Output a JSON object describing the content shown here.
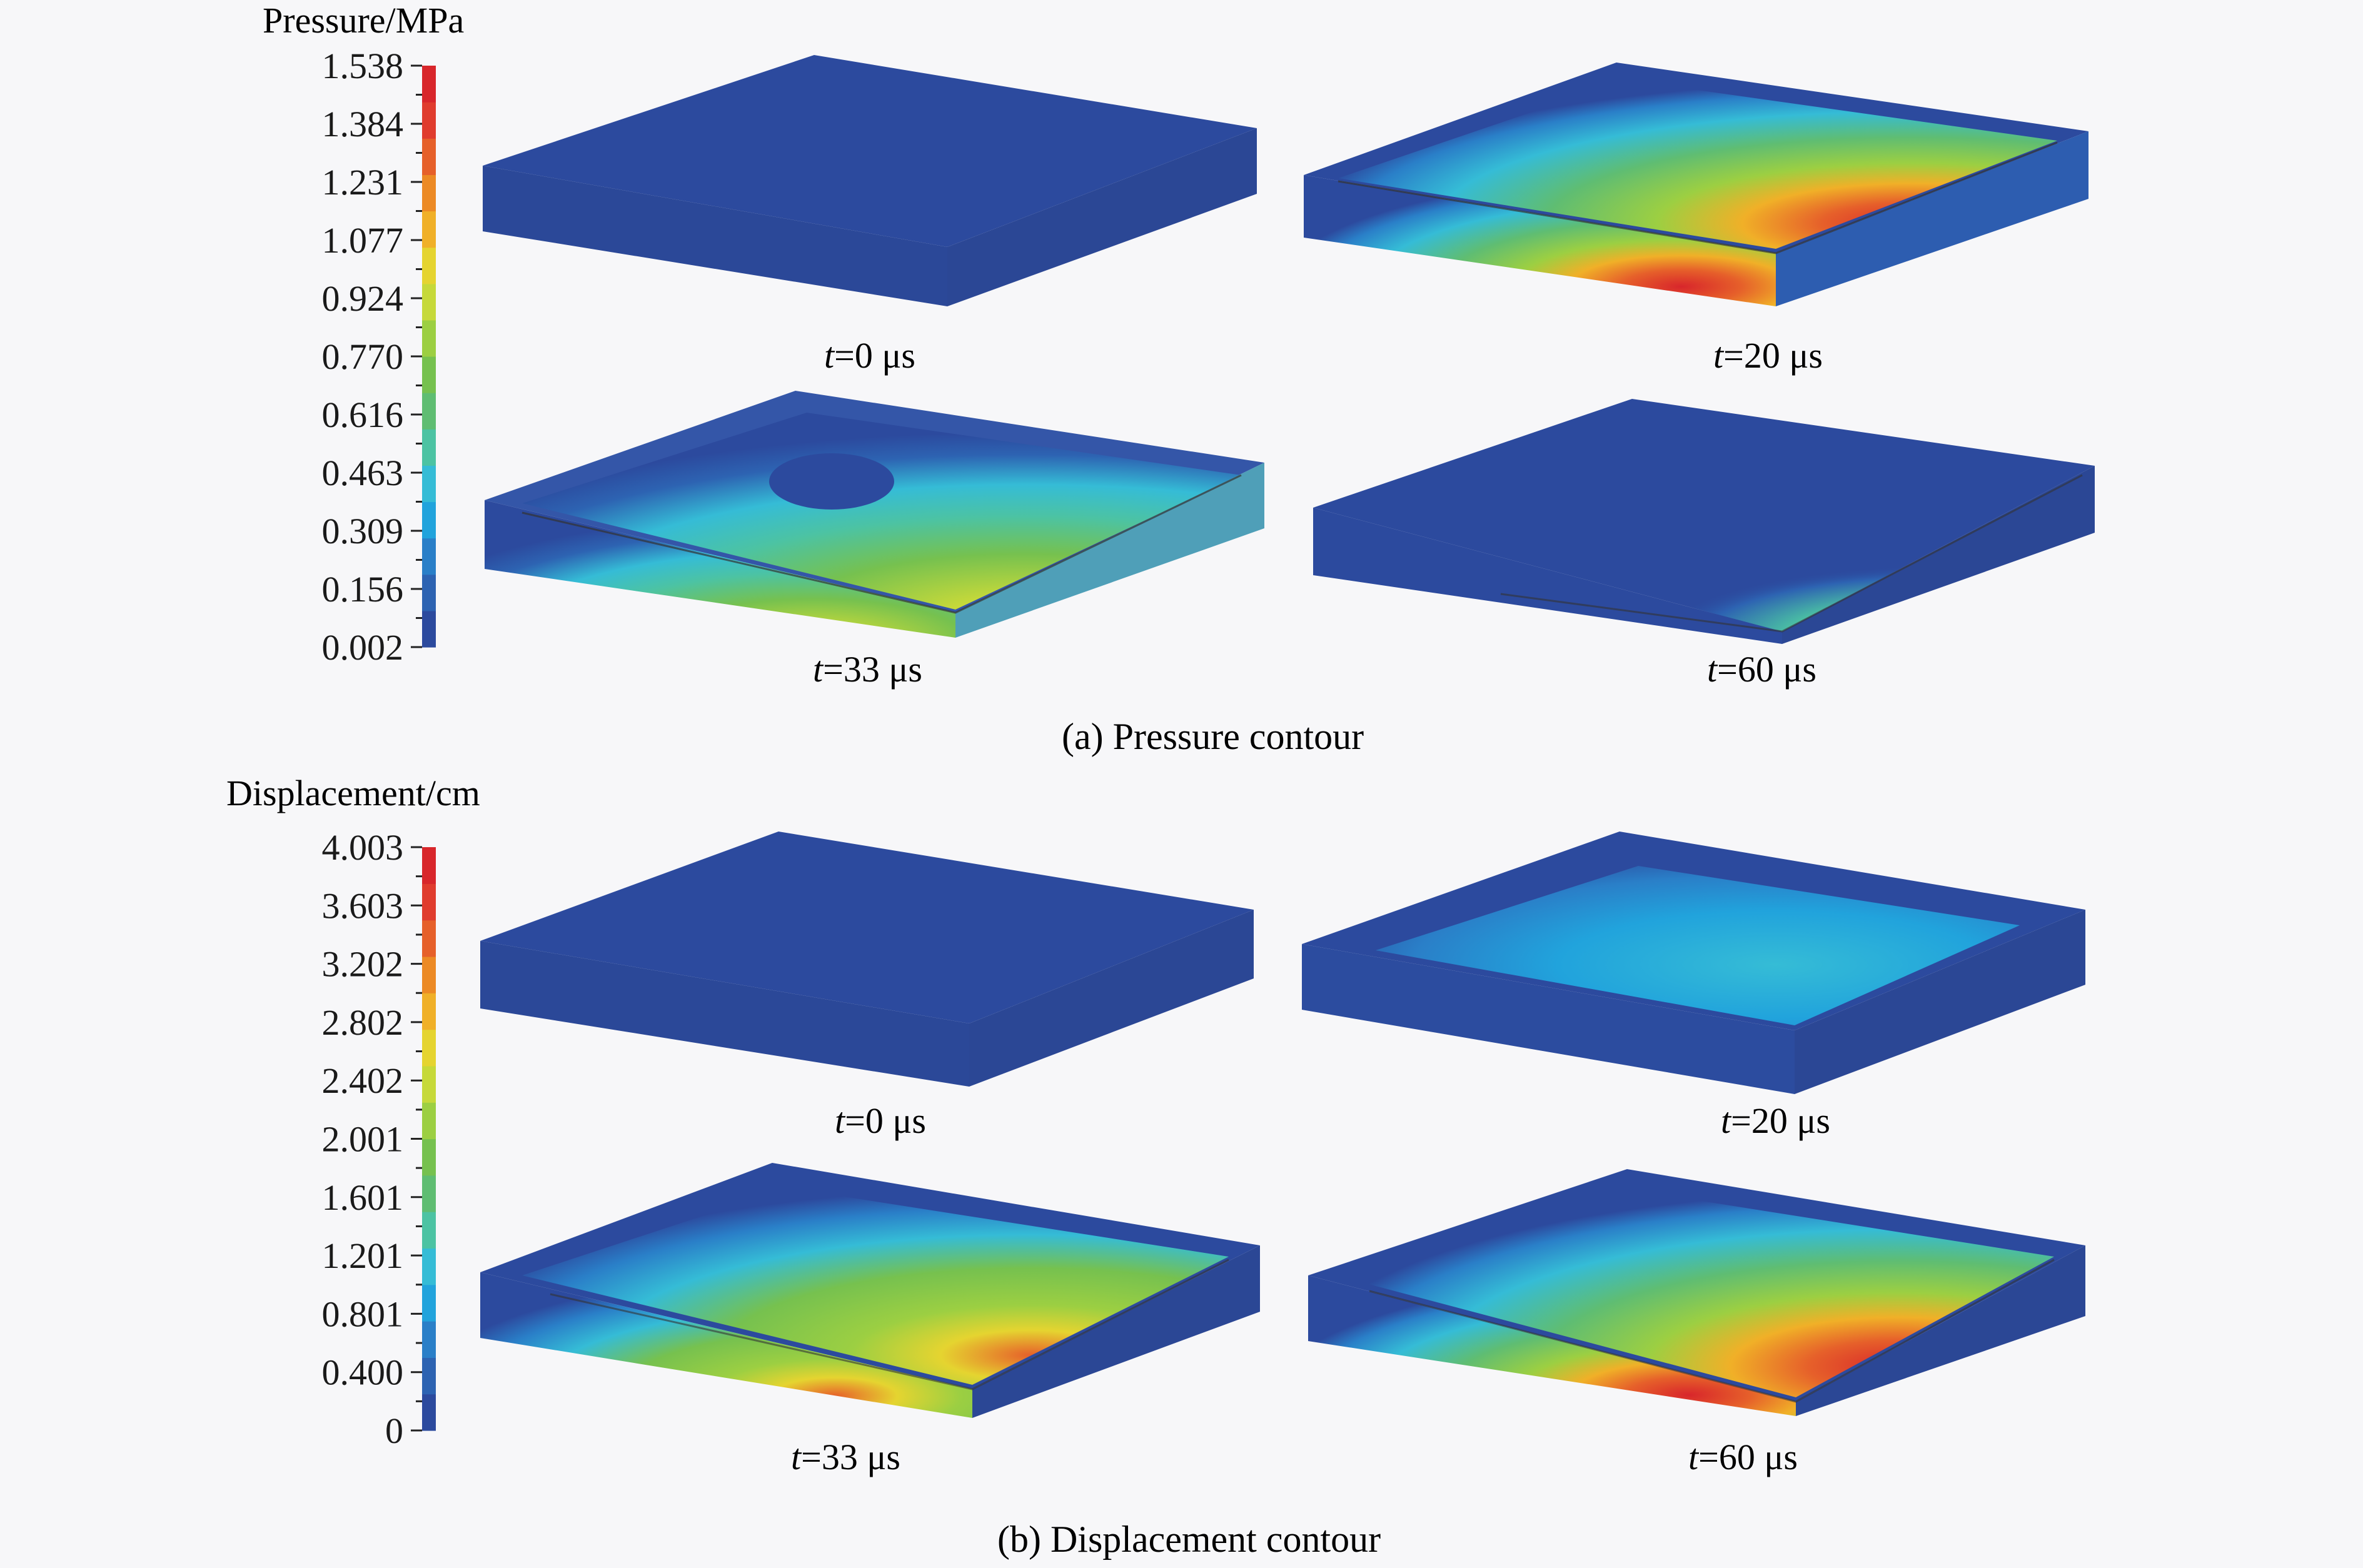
{
  "colors": {
    "background": "#f7f7f9",
    "contour_scale": [
      "#2c4a9e",
      "#2d63b2",
      "#2a7fc8",
      "#21a3dc",
      "#35bcd6",
      "#4cc3a3",
      "#5fbd72",
      "#76c14f",
      "#9ccf42",
      "#c6d93a",
      "#e5d430",
      "#f0b028",
      "#ec8a25",
      "#e6602a",
      "#e03c2e",
      "#d8262b"
    ]
  },
  "pressure": {
    "legend_title": "Pressure/MPa",
    "ticks": [
      "1.538",
      "1.384",
      "1.231",
      "1.077",
      "0.924",
      "0.770",
      "0.616",
      "0.463",
      "0.309",
      "0.156",
      "0.002"
    ],
    "panels": [
      {
        "label_italic": "t",
        "label_rest": "=0 μs"
      },
      {
        "label_italic": "t",
        "label_rest": "=20 μs"
      },
      {
        "label_italic": "t",
        "label_rest": "=33 μs"
      },
      {
        "label_italic": "t",
        "label_rest": "=60 μs"
      }
    ],
    "caption": "(a) Pressure contour"
  },
  "displacement": {
    "legend_title": "Displacement/cm",
    "ticks": [
      "4.003",
      "3.603",
      "3.202",
      "2.802",
      "2.402",
      "2.001",
      "1.601",
      "1.201",
      "0.801",
      "0.400",
      "0"
    ],
    "panels": [
      {
        "label_italic": "t",
        "label_rest": "=0 μs"
      },
      {
        "label_italic": "t",
        "label_rest": "=20 μs"
      },
      {
        "label_italic": "t",
        "label_rest": "=33 μs"
      },
      {
        "label_italic": "t",
        "label_rest": "=60 μs"
      }
    ],
    "caption": "(b) Displacement contour"
  }
}
